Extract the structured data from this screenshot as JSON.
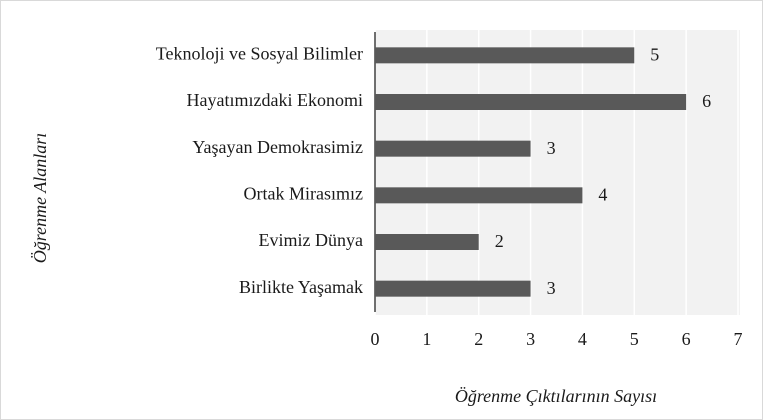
{
  "chart_data": {
    "type": "barh",
    "categories": [
      "Teknoloji ve Sosyal Bilimler",
      "Hayatımızdaki Ekonomi",
      "Yaşayan Demokrasimiz",
      "Ortak Mirasımız",
      "Evimiz Dünya",
      "Birlikte Yaşamak"
    ],
    "values": [
      5,
      6,
      3,
      4,
      2,
      3
    ],
    "color": "#595959",
    "xlabel": "Öğrenme Çıktılarının Sayısı",
    "ylabel": "Öğrenme Alanları",
    "xlim": [
      0,
      7
    ],
    "xticks": [
      0,
      1,
      2,
      3,
      4,
      5,
      6,
      7
    ],
    "grid": true
  }
}
